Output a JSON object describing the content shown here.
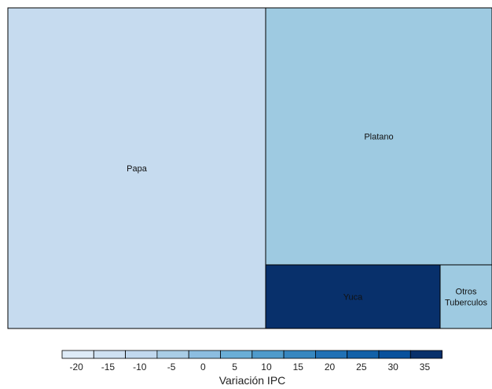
{
  "chart_data": {
    "type": "treemap",
    "tiles": [
      {
        "label_lines": [
          "Papa"
        ],
        "value": -18,
        "color": "#c6dbef"
      },
      {
        "label_lines": [
          "Platano"
        ],
        "value": -8,
        "color": "#9ecae1"
      },
      {
        "label_lines": [
          "Yuca"
        ],
        "value": 36,
        "color": "#08306b"
      },
      {
        "label_lines": [
          "Otros",
          "Tuberculos"
        ],
        "value": -9,
        "color": "#9ecae1"
      }
    ],
    "legend": {
      "title": "Variación IPC",
      "ticks": [
        "-20",
        "-15",
        "-10",
        "-5",
        "0",
        "5",
        "10",
        "15",
        "20",
        "25",
        "30",
        "35"
      ],
      "colors": [
        "#deebf7",
        "#cfe1f2",
        "#c1d8ee",
        "#a9cde6",
        "#8cbde0",
        "#6aaed6",
        "#4f9bcb",
        "#3787c0",
        "#2171b5",
        "#1361a8",
        "#08519c",
        "#08306b"
      ]
    }
  }
}
